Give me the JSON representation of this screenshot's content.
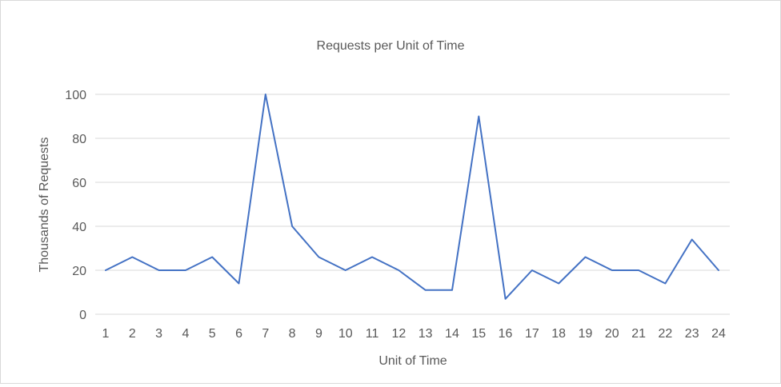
{
  "chart_data": {
    "type": "line",
    "title": "Requests per Unit of Time",
    "xlabel": "Unit of Time",
    "ylabel": "Thousands of Requests",
    "categories": [
      "1",
      "2",
      "3",
      "4",
      "5",
      "6",
      "7",
      "8",
      "9",
      "10",
      "11",
      "12",
      "13",
      "14",
      "15",
      "16",
      "17",
      "18",
      "19",
      "20",
      "21",
      "22",
      "23",
      "24"
    ],
    "series": [
      {
        "values": [
          20,
          26,
          20,
          20,
          26,
          14,
          100,
          40,
          26,
          20,
          26,
          20,
          11,
          11,
          90,
          7,
          20,
          14,
          26,
          20,
          20,
          14,
          34,
          20
        ]
      }
    ],
    "ylim": [
      0,
      100
    ],
    "yticks": [
      0,
      20,
      40,
      60,
      80,
      100
    ],
    "grid": true,
    "legend": "none",
    "colors": {
      "line": "#4472c4",
      "grid": "#d9d9d9",
      "text": "#595959"
    }
  }
}
